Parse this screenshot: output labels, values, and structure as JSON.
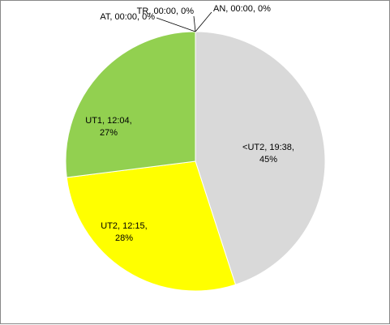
{
  "chart_data": {
    "type": "pie",
    "values": [
      45,
      28,
      27,
      0,
      0,
      0
    ],
    "value_labels": [
      "<UT2, 19:38, 45%",
      "UT2, 12:15, 28%",
      "UT1, 12:04, 27%",
      "AT, 00:00, 0%",
      "TR, 00:00, 0%",
      "AN, 00:00, 0%"
    ],
    "colors": [
      "#d9d9d9",
      "#ffff00",
      "#92d050",
      "#4472c4",
      "#ed7d31",
      "#a5a5a5"
    ]
  }
}
